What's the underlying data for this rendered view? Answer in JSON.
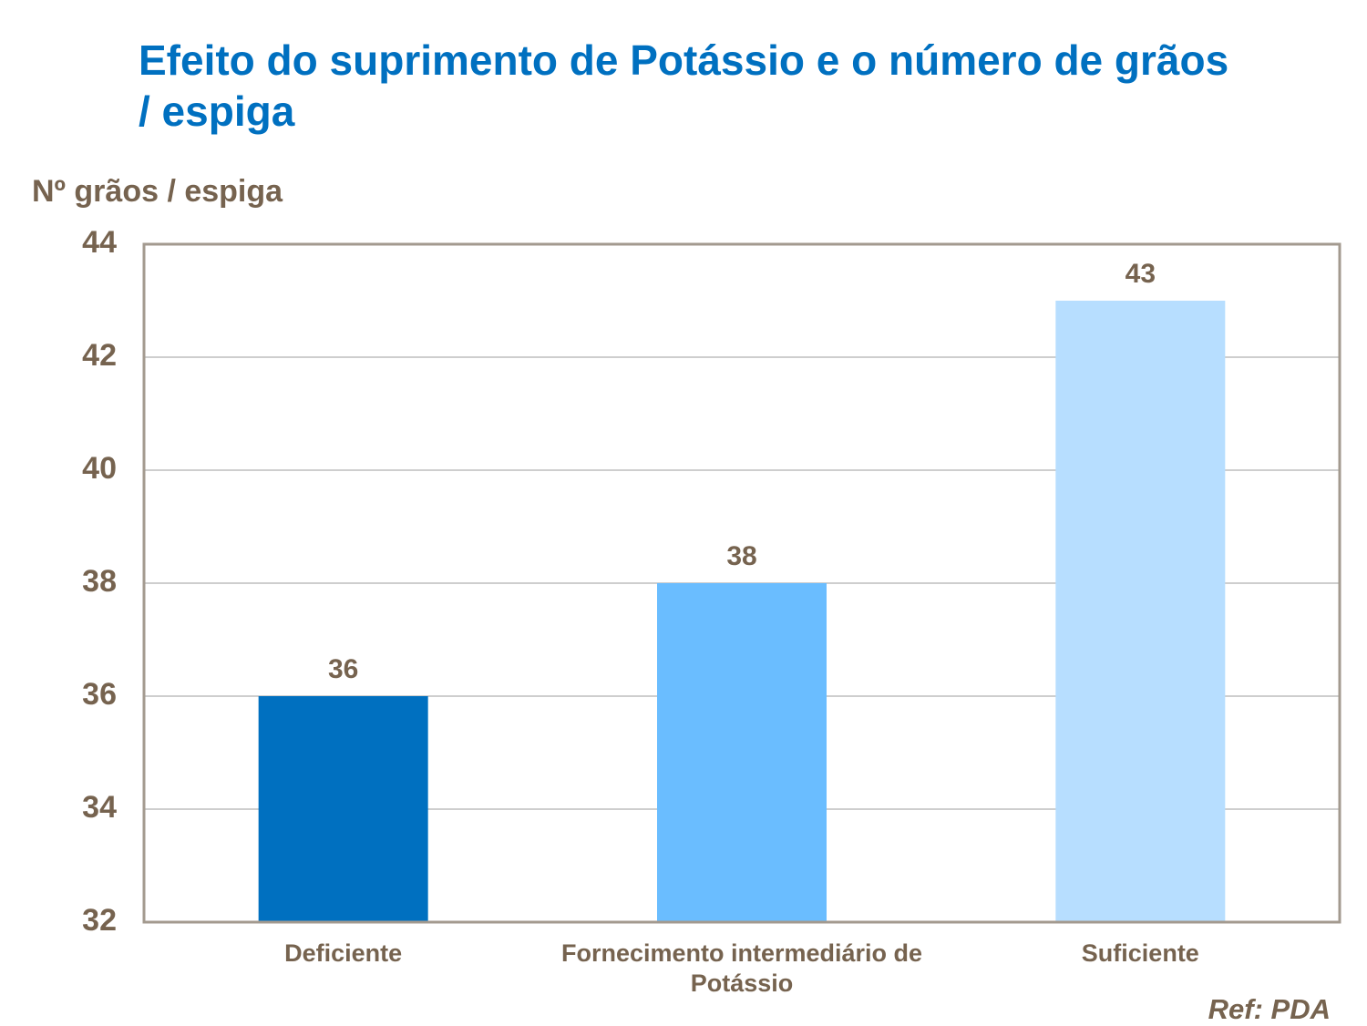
{
  "chart_data": {
    "type": "bar",
    "title": "Efeito do suprimento de Potássio e o número de grãos / espiga",
    "y_label": "Nº grãos / espiga",
    "categories": [
      "Deficiente",
      "Fornecimento intermediário de Potássio",
      "Suficiente"
    ],
    "values": [
      36,
      38,
      43
    ],
    "colors": [
      "#0070c0",
      "#6abdff",
      "#b7deff"
    ],
    "ylim": [
      32,
      44
    ],
    "yticks": [
      32,
      34,
      36,
      38,
      40,
      42,
      44
    ],
    "grid": true,
    "source": "Ref: PDA"
  }
}
